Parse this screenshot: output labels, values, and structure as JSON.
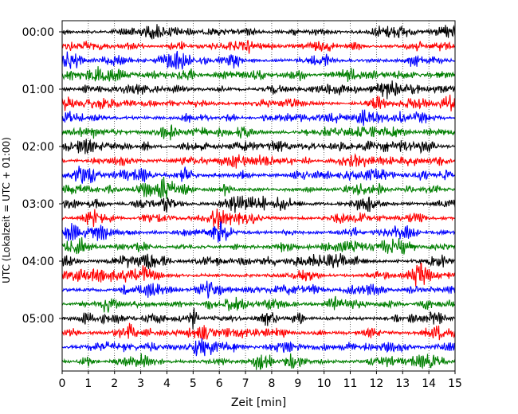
{
  "chart_data": {
    "type": "line",
    "subtype": "helicorder-seismogram",
    "xlabel": "Zeit  [min]",
    "ylabel": "UTC (Lokalzeit = UTC + 01:00)",
    "xlim": [
      0,
      15
    ],
    "x_ticks": [
      0,
      1,
      2,
      3,
      4,
      5,
      6,
      7,
      8,
      9,
      10,
      11,
      12,
      13,
      14,
      15
    ],
    "x_tick_labels": [
      "0",
      "1",
      "2",
      "3",
      "4",
      "5",
      "6",
      "7",
      "8",
      "9",
      "10",
      "11",
      "12",
      "13",
      "14",
      "15"
    ],
    "grid": "vertical dotted lines at each minute",
    "row_duration_min": 15,
    "trace_color_cycle": [
      "#000000",
      "#ff0000",
      "#0000ff",
      "#007f00"
    ],
    "rows": [
      {
        "label": "00:00",
        "tick": true
      },
      {
        "label": "00:15",
        "tick": false
      },
      {
        "label": "00:30",
        "tick": false
      },
      {
        "label": "00:45",
        "tick": false
      },
      {
        "label": "01:00",
        "tick": true
      },
      {
        "label": "01:15",
        "tick": false
      },
      {
        "label": "01:30",
        "tick": false
      },
      {
        "label": "01:45",
        "tick": false
      },
      {
        "label": "02:00",
        "tick": true
      },
      {
        "label": "02:15",
        "tick": false
      },
      {
        "label": "02:30",
        "tick": false
      },
      {
        "label": "02:45",
        "tick": false
      },
      {
        "label": "03:00",
        "tick": true
      },
      {
        "label": "03:15",
        "tick": false
      },
      {
        "label": "03:30",
        "tick": false
      },
      {
        "label": "03:45",
        "tick": false
      },
      {
        "label": "04:00",
        "tick": true
      },
      {
        "label": "04:15",
        "tick": false
      },
      {
        "label": "04:30",
        "tick": false
      },
      {
        "label": "04:45",
        "tick": false
      },
      {
        "label": "05:00",
        "tick": true
      },
      {
        "label": "05:15",
        "tick": false
      },
      {
        "label": "05:30",
        "tick": false
      },
      {
        "label": "05:45",
        "tick": false
      }
    ]
  }
}
